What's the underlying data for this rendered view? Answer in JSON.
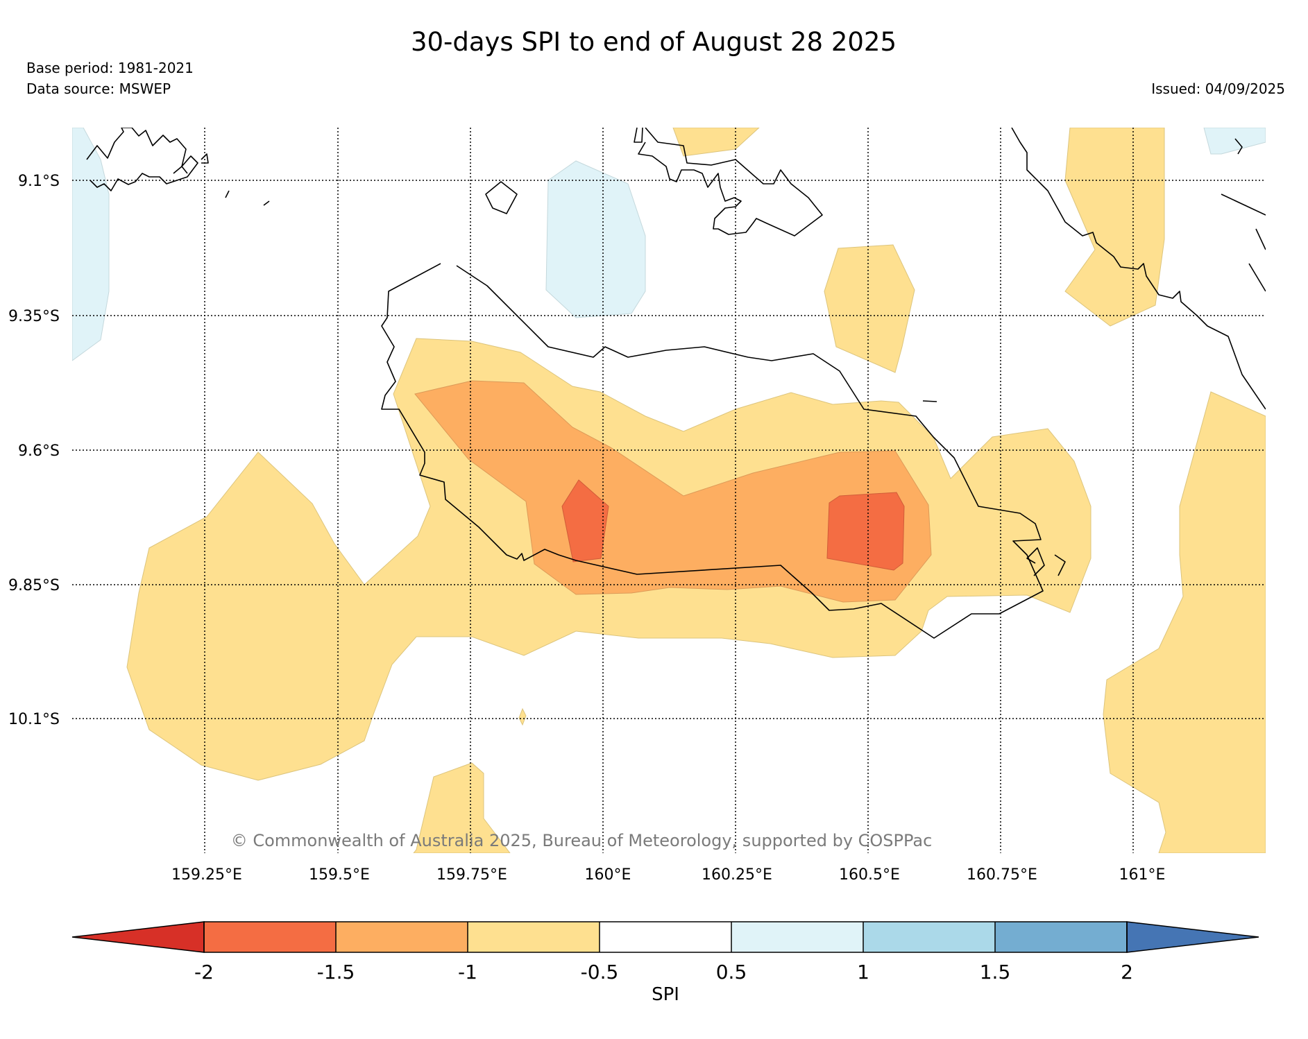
{
  "title": "30-days SPI to end of August 28 2025",
  "base_period": "Base period: 1981-2021",
  "data_source": "Data source: MSWEP",
  "issued": "Issued: 04/09/2025",
  "copyright": "© Commonwealth of Australia 2025, Bureau of Meteorology, supported by COSPPac",
  "lat_labels": [
    "9.1°S",
    "9.35°S",
    "9.6°S",
    "9.85°S",
    "10.1°S"
  ],
  "lon_labels": [
    "159.25°E",
    "159.5°E",
    "159.75°E",
    "160°E",
    "160.25°E",
    "160.5°E",
    "160.75°E",
    "161°E"
  ],
  "colorbar": {
    "label": "SPI",
    "ticks": [
      "-2",
      "-1.5",
      "-1",
      "-0.5",
      "0.5",
      "1",
      "1.5",
      "2"
    ],
    "colors": [
      "#d73027",
      "#f46d43",
      "#fdae61",
      "#fee090",
      "#ffffff",
      "#e0f3f8",
      "#abd9e9",
      "#74add1",
      "#4575b4"
    ]
  }
}
